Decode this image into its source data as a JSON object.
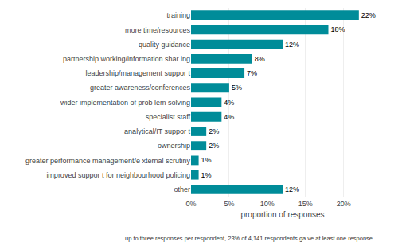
{
  "chart_data": {
    "type": "bar",
    "orientation": "horizontal",
    "categories": [
      "other",
      "improved suppor t for neighbourhood policing",
      "greater performance management/e xternal scrutiny",
      "ownership",
      "analytical/IT suppor t",
      "specialist staff",
      "wider implementation of prob lem solving",
      "greater awareness/conferences",
      "leadership/management suppor t",
      "partnership working/information shar ing",
      "quality guidance",
      "more time/resources",
      "training"
    ],
    "values": [
      12,
      1,
      1,
      2,
      2,
      4,
      4,
      5,
      7,
      8,
      12,
      18,
      22
    ],
    "value_labels": [
      "12%",
      "1%",
      "1%",
      "2%",
      "2%",
      "4%",
      "4%",
      "5%",
      "7%",
      "8%",
      "12%",
      "18%",
      "22%"
    ],
    "data_labels": true,
    "color": "#008c99",
    "xlabel": "proportion of responses",
    "xlim": [
      0,
      24
    ],
    "xticks": [
      {
        "value": 0,
        "label": "0%"
      },
      {
        "value": 5,
        "label": "5%"
      },
      {
        "value": 10,
        "label": "10%"
      },
      {
        "value": 15,
        "label": "15%"
      },
      {
        "value": 20,
        "label": "20%"
      }
    ],
    "grid": true,
    "annotations": [
      "up to three responses per respondent, 23% of 4,141 respondents ga ve at least one response"
    ]
  }
}
